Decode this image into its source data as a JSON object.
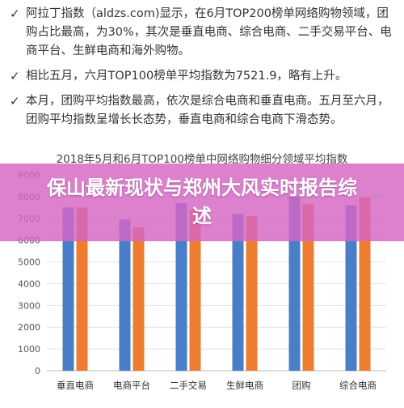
{
  "bullets": [
    "阿拉丁指数（aldzs.com)显示，在6月TOP200榜单网络购物领域，团购占比最高，为30%，其次是垂直电商、综合电商、二手交易平台、电商平台、生鲜电商和海外购物。",
    "相比五月，六月TOP100榜单平均指数为7521.9，略有上升。",
    "本月，团购平均指数最高，依次是综合电商和垂直电商。五月至六月，团购平均指数呈增长长态势，垂直电商和综合电商下滑态势。"
  ],
  "banner": {
    "text": "保山最新现状与郑州大风实时报告综述",
    "color": "#d665c4"
  },
  "chart_data": {
    "type": "bar",
    "title": "2018年5月和6月TOP100榜单中网络购物细分领域平均指数",
    "categories": [
      "垂直电商",
      "电商平台",
      "二手交易",
      "生鲜电商",
      "团购",
      "综合电商"
    ],
    "series": [
      {
        "values": [
          7500,
          6950,
          7700,
          7200,
          8000,
          7600
        ],
        "color": "#4a7ec8"
      },
      {
        "values": [
          7500,
          6600,
          7400,
          7100,
          7650,
          7950
        ],
        "color": "#ee7d31"
      }
    ],
    "ylim": [
      0,
      9000
    ],
    "yticks": [
      0,
      1000,
      2000,
      3000,
      4000,
      5000,
      6000,
      7000,
      8000,
      9000
    ],
    "grid": true
  }
}
